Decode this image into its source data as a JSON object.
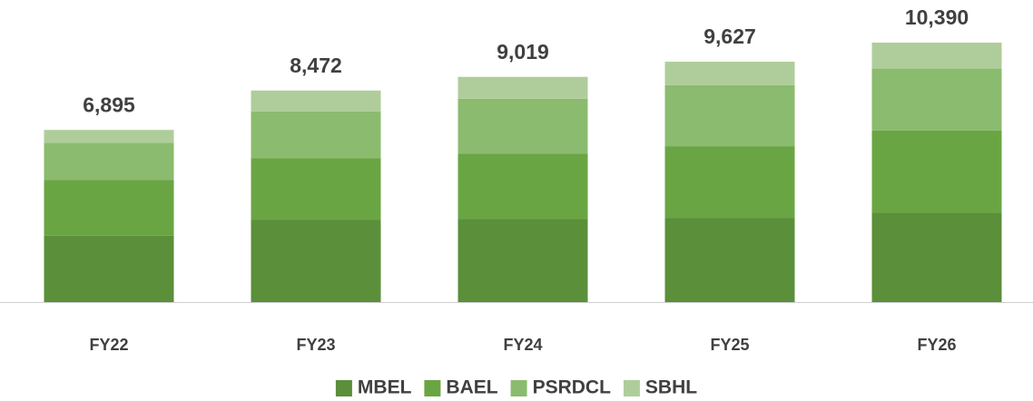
{
  "chart_data": {
    "type": "stacked_bar",
    "categories": [
      "FY22",
      "FY23",
      "FY24",
      "FY25",
      "FY26"
    ],
    "series": [
      {
        "name": "MBEL",
        "color": "#5b8f3a",
        "values": [
          2663,
          3287,
          3323,
          3360,
          3580
        ]
      },
      {
        "name": "BAEL",
        "color": "#6aa543",
        "values": [
          2225,
          2483,
          2629,
          2885,
          3288
        ]
      },
      {
        "name": "PSRDCL",
        "color": "#8bbb6e",
        "values": [
          1496,
          1862,
          2191,
          2447,
          2483
        ]
      },
      {
        "name": "SBHL",
        "color": "#afcd9a",
        "values": [
          511,
          840,
          876,
          935,
          1039
        ]
      }
    ],
    "totals": {
      "values": [
        6895,
        8472,
        9019,
        9627,
        10390
      ],
      "value_labels": [
        "6,895",
        "8,472",
        "9,019",
        "9,627",
        "10,390"
      ]
    },
    "legend": "bottom"
  }
}
